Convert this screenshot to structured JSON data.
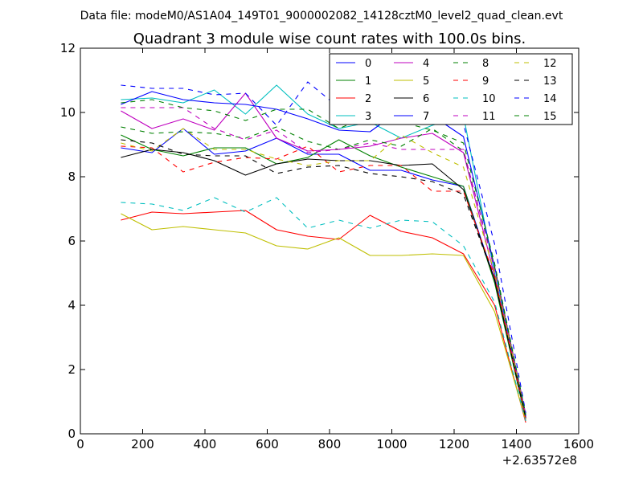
{
  "chart_data": {
    "type": "line",
    "suptitle": "Data file: modeM0/AS1A04_149T01_9000002082_14128cztM0_level2_quad_clean.evt",
    "title": "Quadrant 3 module wise count rates with 100.0s bins.",
    "xlabel": "",
    "ylabel": "",
    "x_offset_label": "+2.63572e8",
    "xlim": [
      0,
      1600
    ],
    "ylim": [
      0,
      12
    ],
    "xticks": [
      0,
      200,
      400,
      600,
      800,
      1000,
      1200,
      1400,
      1600
    ],
    "yticks": [
      0,
      2,
      4,
      6,
      8,
      10,
      12
    ],
    "x": [
      130,
      230,
      330,
      430,
      530,
      630,
      730,
      830,
      930,
      1030,
      1130,
      1230,
      1330,
      1430
    ],
    "legend_position": "top-right",
    "series": [
      {
        "name": "0",
        "color": "#0000ff",
        "dash": "solid",
        "values": [
          8.9,
          8.75,
          9.5,
          8.7,
          8.8,
          9.2,
          8.7,
          8.7,
          8.2,
          8.2,
          7.9,
          7.7,
          4.8,
          0.5
        ]
      },
      {
        "name": "1",
        "color": "#008000",
        "dash": "solid",
        "values": [
          9.3,
          8.85,
          8.65,
          8.9,
          8.9,
          8.4,
          8.6,
          9.15,
          8.65,
          8.3,
          8.0,
          7.7,
          4.7,
          0.45
        ]
      },
      {
        "name": "2",
        "color": "#ff0000",
        "dash": "solid",
        "values": [
          6.65,
          6.9,
          6.85,
          6.9,
          6.95,
          6.35,
          6.15,
          6.05,
          6.8,
          6.3,
          6.1,
          5.6,
          4.0,
          0.35
        ]
      },
      {
        "name": "3",
        "color": "#00bfbf",
        "dash": "solid",
        "values": [
          10.4,
          10.45,
          10.3,
          10.7,
          9.95,
          10.85,
          9.95,
          9.5,
          9.7,
          9.2,
          9.6,
          9.9,
          5.0,
          0.6
        ]
      },
      {
        "name": "4",
        "color": "#bf00bf",
        "dash": "solid",
        "values": [
          10.05,
          9.5,
          9.8,
          9.45,
          10.6,
          9.2,
          8.8,
          8.85,
          8.95,
          9.2,
          9.35,
          8.75,
          4.9,
          0.55
        ]
      },
      {
        "name": "5",
        "color": "#bfbf00",
        "dash": "solid",
        "values": [
          6.85,
          6.35,
          6.45,
          6.35,
          6.25,
          5.85,
          5.75,
          6.1,
          5.55,
          5.55,
          5.6,
          5.55,
          3.8,
          0.4
        ]
      },
      {
        "name": "6",
        "color": "#000000",
        "dash": "solid",
        "values": [
          8.6,
          8.85,
          8.75,
          8.5,
          8.05,
          8.4,
          8.55,
          8.5,
          8.5,
          8.35,
          8.4,
          7.6,
          4.8,
          0.5
        ]
      },
      {
        "name": "7",
        "color": "#0000ff",
        "dash": "solid",
        "values": [
          10.25,
          10.65,
          10.4,
          10.3,
          10.25,
          10.1,
          9.8,
          9.45,
          9.4,
          10.1,
          9.9,
          9.25,
          5.2,
          0.55
        ]
      },
      {
        "name": "8",
        "color": "#008000",
        "dash": "dashed",
        "values": [
          9.55,
          9.35,
          9.4,
          9.35,
          9.2,
          9.55,
          9.1,
          8.85,
          9.15,
          8.95,
          9.5,
          8.8,
          5.2,
          0.6
        ]
      },
      {
        "name": "9",
        "color": "#ff0000",
        "dash": "dashed",
        "values": [
          8.95,
          8.9,
          8.15,
          8.45,
          8.6,
          8.55,
          8.95,
          8.15,
          8.35,
          8.35,
          7.55,
          7.55,
          4.9,
          0.45
        ]
      },
      {
        "name": "10",
        "color": "#00bfbf",
        "dash": "dashed",
        "values": [
          7.2,
          7.15,
          6.95,
          7.35,
          6.9,
          7.35,
          6.4,
          6.65,
          6.4,
          6.65,
          6.6,
          5.85,
          4.1,
          0.4
        ]
      },
      {
        "name": "11",
        "color": "#bf00bf",
        "dash": "dashed",
        "values": [
          10.15,
          10.15,
          10.15,
          9.5,
          9.15,
          9.45,
          8.75,
          8.85,
          9.05,
          8.85,
          8.85,
          8.85,
          5.1,
          0.6
        ]
      },
      {
        "name": "12",
        "color": "#bfbf00",
        "dash": "dashed",
        "values": [
          9.05,
          8.8,
          9.5,
          8.85,
          8.85,
          8.55,
          8.35,
          8.5,
          8.5,
          9.3,
          8.75,
          8.3,
          5.0,
          0.55
        ]
      },
      {
        "name": "13",
        "color": "#000000",
        "dash": "dashed",
        "values": [
          9.15,
          9.05,
          8.7,
          8.65,
          8.65,
          8.1,
          8.3,
          8.35,
          8.1,
          8.0,
          7.85,
          7.45,
          4.8,
          0.5
        ]
      },
      {
        "name": "14",
        "color": "#0000ff",
        "dash": "dashed",
        "values": [
          10.85,
          10.75,
          10.75,
          10.55,
          10.6,
          9.6,
          10.95,
          10.15,
          9.85,
          9.95,
          9.8,
          9.65,
          5.9,
          0.65
        ]
      },
      {
        "name": "15",
        "color": "#008000",
        "dash": "dashed",
        "values": [
          10.3,
          10.4,
          10.15,
          10.05,
          9.75,
          10.1,
          10.1,
          9.5,
          9.9,
          9.7,
          9.45,
          9.05,
          5.3,
          0.6
        ]
      }
    ]
  }
}
